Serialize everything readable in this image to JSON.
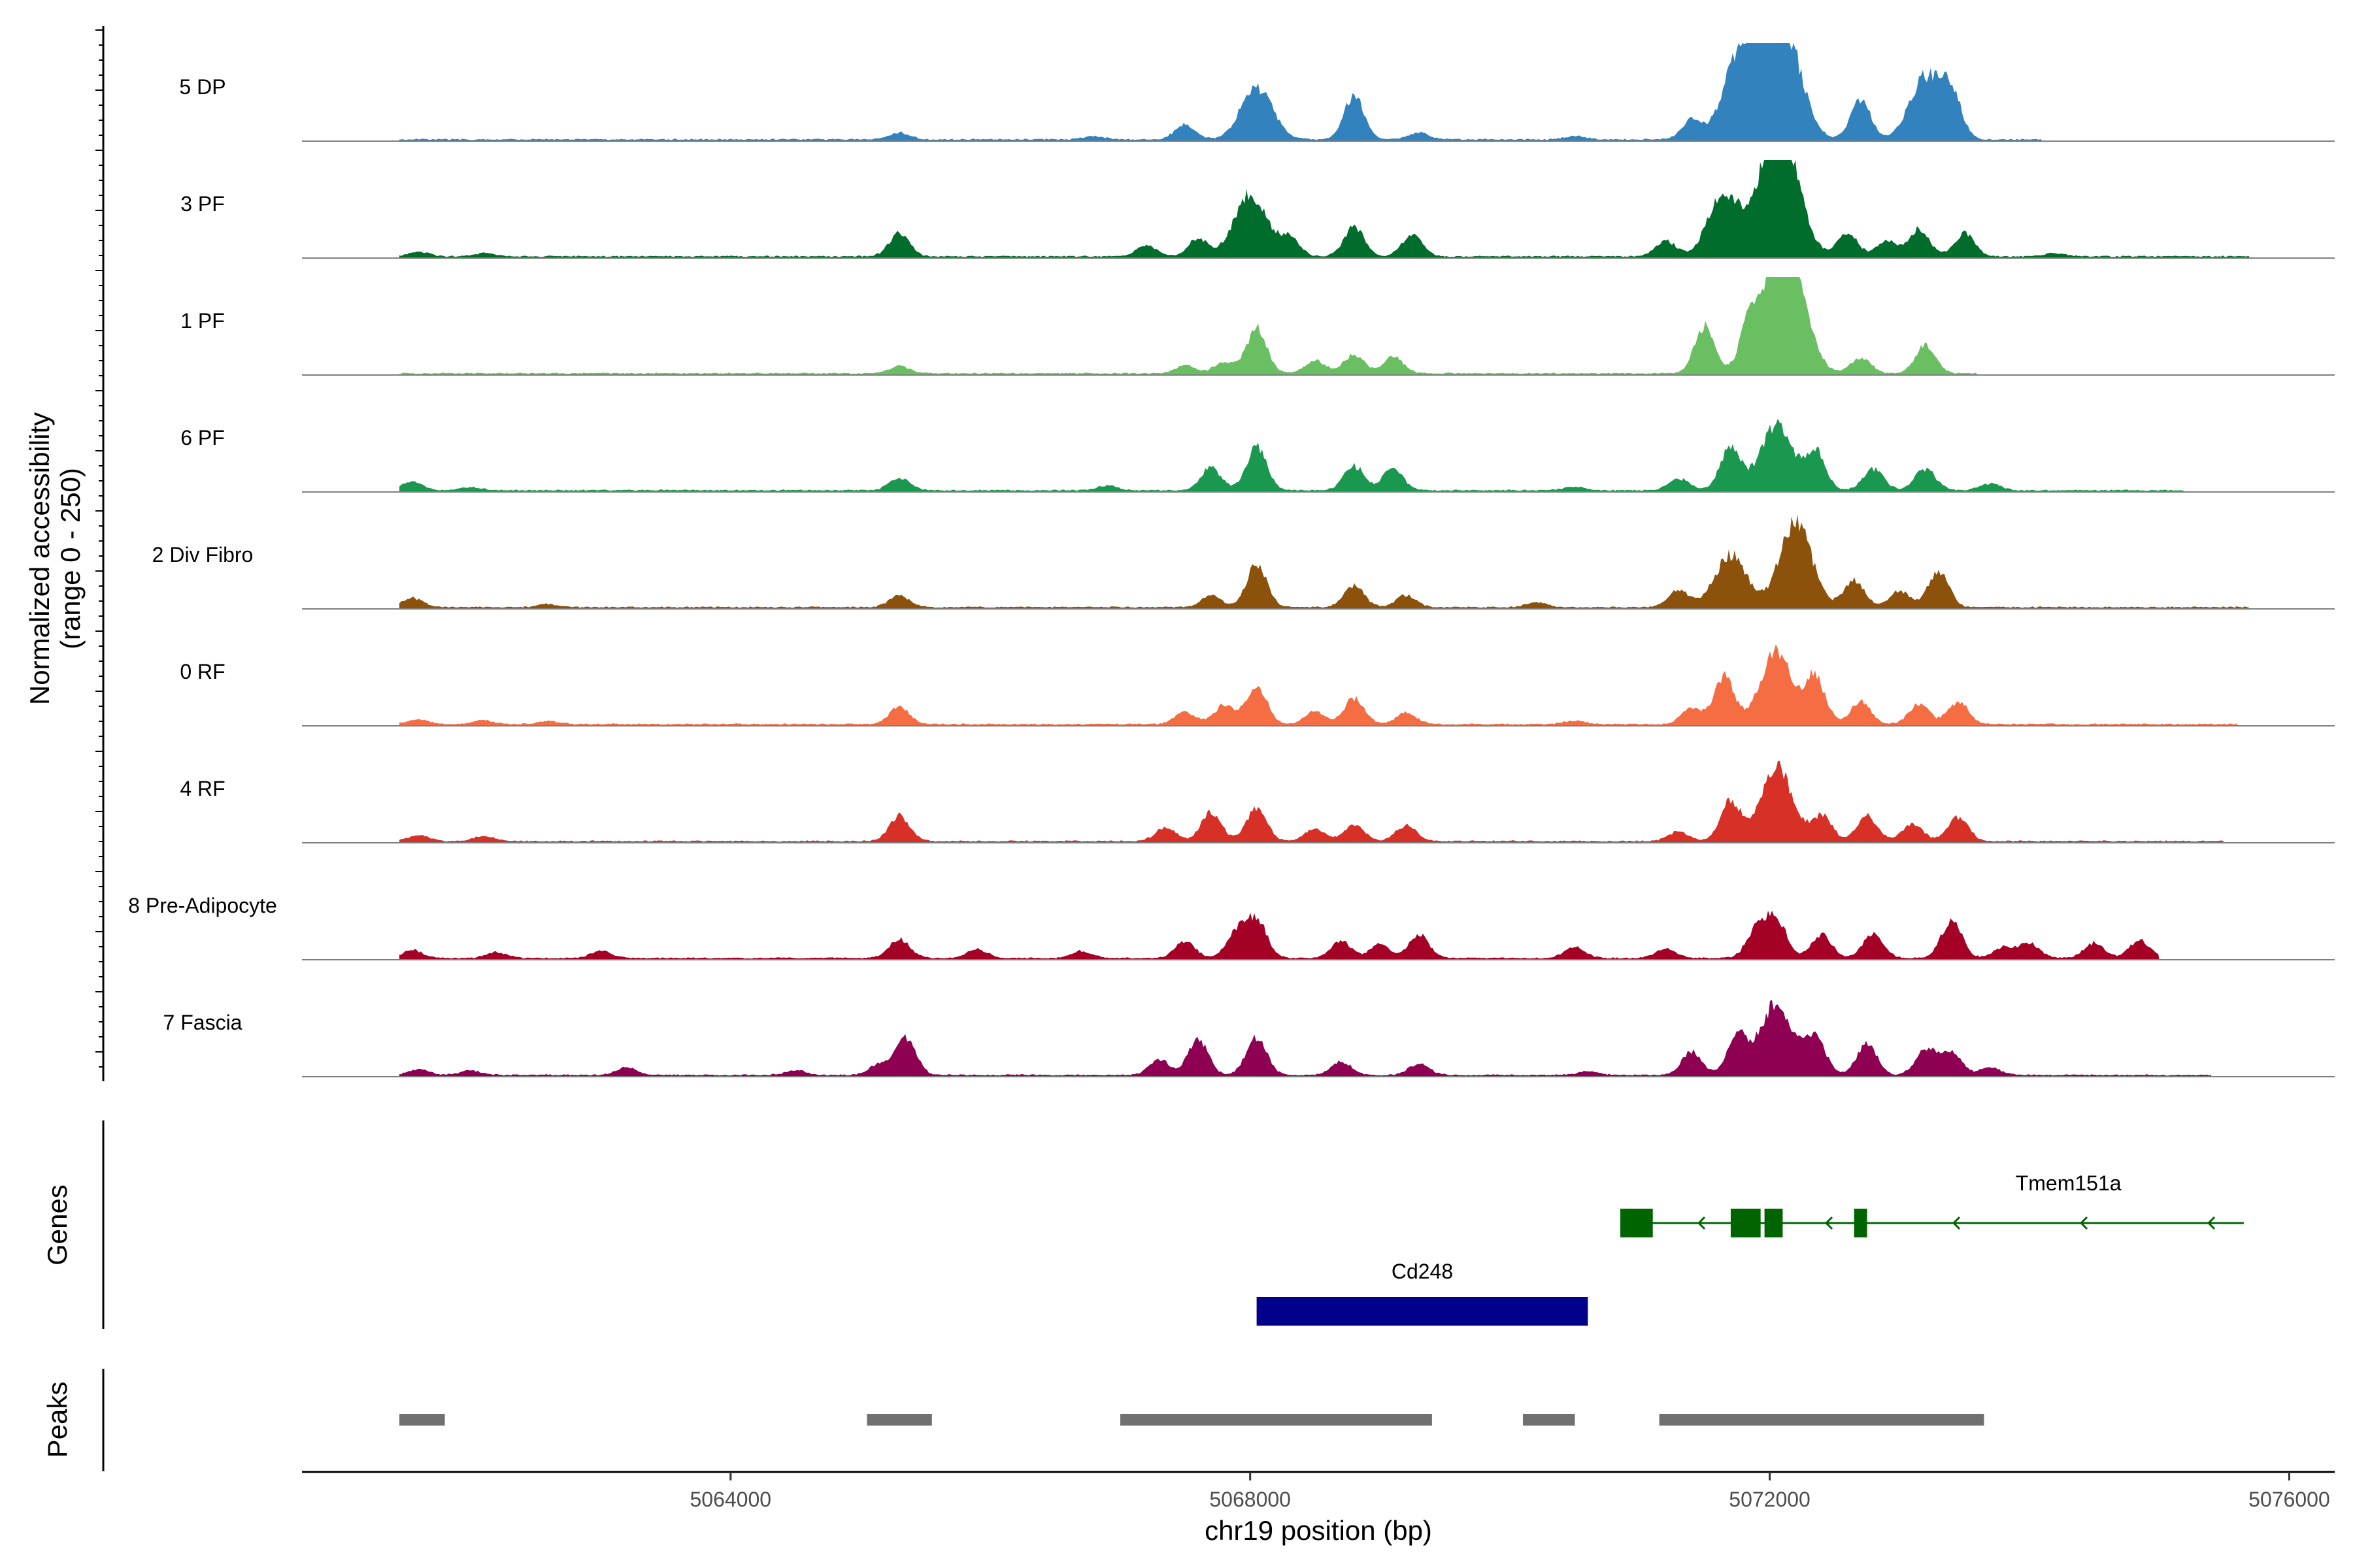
{
  "chart_data": {
    "type": "area",
    "title": "",
    "ylabel_line1": "Normalized accessibility",
    "ylabel_line2": "(range 0 - 250)",
    "ylim": [
      0,
      250
    ],
    "xlabel": "chr19 position (bp)",
    "xlim": [
      5060700,
      5076350
    ],
    "xticks": [
      5064000,
      5068000,
      5072000,
      5076000
    ],
    "xtick_labels": [
      "5064000",
      "5068000",
      "5072000",
      "5076000"
    ],
    "track_names": [
      "5 DP",
      "3 PF",
      "1 PF",
      "6 PF",
      "2 Div Fibro",
      "0 RF",
      "4 RF",
      "8 Pre-Adipocyte",
      "7 Fascia"
    ],
    "tracks": [
      {
        "name": "5 DP",
        "color": "#3182BD",
        "start": 5061450,
        "end": 5074100,
        "peaks": [
          [
            5065300,
            17
          ],
          [
            5066800,
            8
          ],
          [
            5067500,
            38
          ],
          [
            5068050,
            135
          ],
          [
            5068800,
            112
          ],
          [
            5069300,
            18
          ],
          [
            5070500,
            8
          ],
          [
            5071400,
            50
          ],
          [
            5071750,
            180
          ],
          [
            5071950,
            228
          ],
          [
            5072150,
            212
          ],
          [
            5072700,
            100
          ],
          [
            5073200,
            160
          ],
          [
            5073400,
            105
          ]
        ]
      },
      {
        "name": "3 PF",
        "color": "#006D2C",
        "start": 5061450,
        "end": 5075700,
        "peaks": [
          [
            5061600,
            12
          ],
          [
            5062100,
            8
          ],
          [
            5065300,
            60
          ],
          [
            5067200,
            28
          ],
          [
            5067600,
            45
          ],
          [
            5068000,
            160
          ],
          [
            5068300,
            48
          ],
          [
            5068800,
            75
          ],
          [
            5069250,
            58
          ],
          [
            5071200,
            40
          ],
          [
            5071650,
            160
          ],
          [
            5072000,
            210
          ],
          [
            5072150,
            190
          ],
          [
            5072600,
            58
          ],
          [
            5072900,
            40
          ],
          [
            5073150,
            70
          ],
          [
            5073500,
            58
          ],
          [
            5074200,
            8
          ]
        ]
      },
      {
        "name": "1 PF",
        "color": "#6ABF62",
        "start": 5061450,
        "end": 5073600,
        "peaks": [
          [
            5065300,
            18
          ],
          [
            5067500,
            20
          ],
          [
            5067800,
            28
          ],
          [
            5068050,
            115
          ],
          [
            5068500,
            32
          ],
          [
            5068800,
            48
          ],
          [
            5069100,
            42
          ],
          [
            5071500,
            120
          ],
          [
            5071850,
            115
          ],
          [
            5072050,
            225
          ],
          [
            5072200,
            170
          ],
          [
            5072700,
            40
          ],
          [
            5073200,
            70
          ]
        ]
      },
      {
        "name": "6 PF",
        "color": "#1A9850",
        "start": 5061450,
        "end": 5075200,
        "peaks": [
          [
            5061550,
            22
          ],
          [
            5062000,
            8
          ],
          [
            5065300,
            32
          ],
          [
            5066900,
            12
          ],
          [
            5067700,
            58
          ],
          [
            5068050,
            112
          ],
          [
            5068800,
            62
          ],
          [
            5069100,
            55
          ],
          [
            5070500,
            10
          ],
          [
            5071300,
            30
          ],
          [
            5071700,
            112
          ],
          [
            5072050,
            165
          ],
          [
            5072350,
            100
          ],
          [
            5072800,
            55
          ],
          [
            5073200,
            55
          ],
          [
            5073700,
            18
          ]
        ]
      },
      {
        "name": "2 Div Fibro",
        "color": "#8C510A",
        "start": 5061450,
        "end": 5075700,
        "peaks": [
          [
            5061550,
            25
          ],
          [
            5062600,
            8
          ],
          [
            5065300,
            30
          ],
          [
            5067700,
            30
          ],
          [
            5068050,
            110
          ],
          [
            5068800,
            55
          ],
          [
            5069200,
            30
          ],
          [
            5070200,
            12
          ],
          [
            5071300,
            45
          ],
          [
            5071700,
            135
          ],
          [
            5072200,
            220
          ],
          [
            5072650,
            70
          ],
          [
            5073000,
            42
          ],
          [
            5073300,
            92
          ]
        ]
      },
      {
        "name": "0 RF",
        "color": "#F46D43",
        "start": 5061450,
        "end": 5075600,
        "peaks": [
          [
            5061600,
            12
          ],
          [
            5062100,
            10
          ],
          [
            5062600,
            8
          ],
          [
            5065300,
            45
          ],
          [
            5067500,
            32
          ],
          [
            5067800,
            48
          ],
          [
            5068050,
            100
          ],
          [
            5068500,
            32
          ],
          [
            5068800,
            65
          ],
          [
            5069200,
            28
          ],
          [
            5070500,
            10
          ],
          [
            5071400,
            40
          ],
          [
            5071650,
            120
          ],
          [
            5072050,
            185
          ],
          [
            5072350,
            120
          ],
          [
            5072700,
            58
          ],
          [
            5073150,
            52
          ],
          [
            5073450,
            58
          ]
        ]
      },
      {
        "name": "4 RF",
        "color": "#D73027",
        "start": 5061450,
        "end": 5075500,
        "peaks": [
          [
            5061600,
            15
          ],
          [
            5062100,
            12
          ],
          [
            5065300,
            65
          ],
          [
            5067350,
            35
          ],
          [
            5067700,
            72
          ],
          [
            5068050,
            85
          ],
          [
            5068500,
            32
          ],
          [
            5068800,
            42
          ],
          [
            5069200,
            40
          ],
          [
            5071300,
            25
          ],
          [
            5071700,
            100
          ],
          [
            5072050,
            188
          ],
          [
            5072400,
            65
          ],
          [
            5072750,
            65
          ],
          [
            5073100,
            45
          ],
          [
            5073450,
            62
          ]
        ]
      },
      {
        "name": "8 Pre-Adipocyte",
        "color": "#A50026",
        "start": 5061450,
        "end": 5075000,
        "peaks": [
          [
            5061550,
            20
          ],
          [
            5062200,
            15
          ],
          [
            5063000,
            18
          ],
          [
            5065300,
            48
          ],
          [
            5065900,
            22
          ],
          [
            5066700,
            18
          ],
          [
            5067500,
            42
          ],
          [
            5067900,
            65
          ],
          [
            5068050,
            95
          ],
          [
            5068700,
            42
          ],
          [
            5069000,
            35
          ],
          [
            5069300,
            58
          ],
          [
            5070500,
            28
          ],
          [
            5071200,
            22
          ],
          [
            5071900,
            72
          ],
          [
            5072050,
            100
          ],
          [
            5072400,
            60
          ],
          [
            5072800,
            62
          ],
          [
            5073400,
            95
          ],
          [
            5073800,
            28
          ],
          [
            5074000,
            38
          ],
          [
            5074500,
            38
          ],
          [
            5074850,
            45
          ]
        ]
      },
      {
        "name": "7 Fascia",
        "color": "#8E0152",
        "start": 5061450,
        "end": 5075400,
        "peaks": [
          [
            5061600,
            15
          ],
          [
            5062000,
            12
          ],
          [
            5063200,
            20
          ],
          [
            5064500,
            12
          ],
          [
            5065150,
            30
          ],
          [
            5065350,
            95
          ],
          [
            5067300,
            40
          ],
          [
            5067600,
            88
          ],
          [
            5068050,
            98
          ],
          [
            5068700,
            35
          ],
          [
            5069300,
            30
          ],
          [
            5070600,
            10
          ],
          [
            5071400,
            60
          ],
          [
            5071750,
            98
          ],
          [
            5072050,
            185
          ],
          [
            5072350,
            100
          ],
          [
            5072750,
            78
          ],
          [
            5073200,
            65
          ],
          [
            5073400,
            62
          ],
          [
            5073700,
            20
          ]
        ]
      }
    ],
    "genes": [
      {
        "name": "Tmem151a",
        "color": "#006400",
        "strand": "-",
        "start": 5070850,
        "end": 5075650,
        "exons": [
          [
            5070850,
            5071100
          ],
          [
            5071700,
            5071930
          ],
          [
            5071960,
            5072100
          ],
          [
            5072650,
            5072750
          ]
        ]
      },
      {
        "name": "Cd248",
        "color": "#00008B",
        "strand": "+",
        "start": 5068050,
        "end": 5070600,
        "exons": [
          [
            5068050,
            5070600
          ]
        ]
      }
    ],
    "peaks_track_label": "Peaks",
    "genes_track_label": "Genes",
    "peak_regions": [
      [
        5061450,
        5061800
      ],
      [
        5065050,
        5065550
      ],
      [
        5067000,
        5069400
      ],
      [
        5070100,
        5070500
      ],
      [
        5071150,
        5073650
      ]
    ],
    "peak_color": "#707070"
  }
}
